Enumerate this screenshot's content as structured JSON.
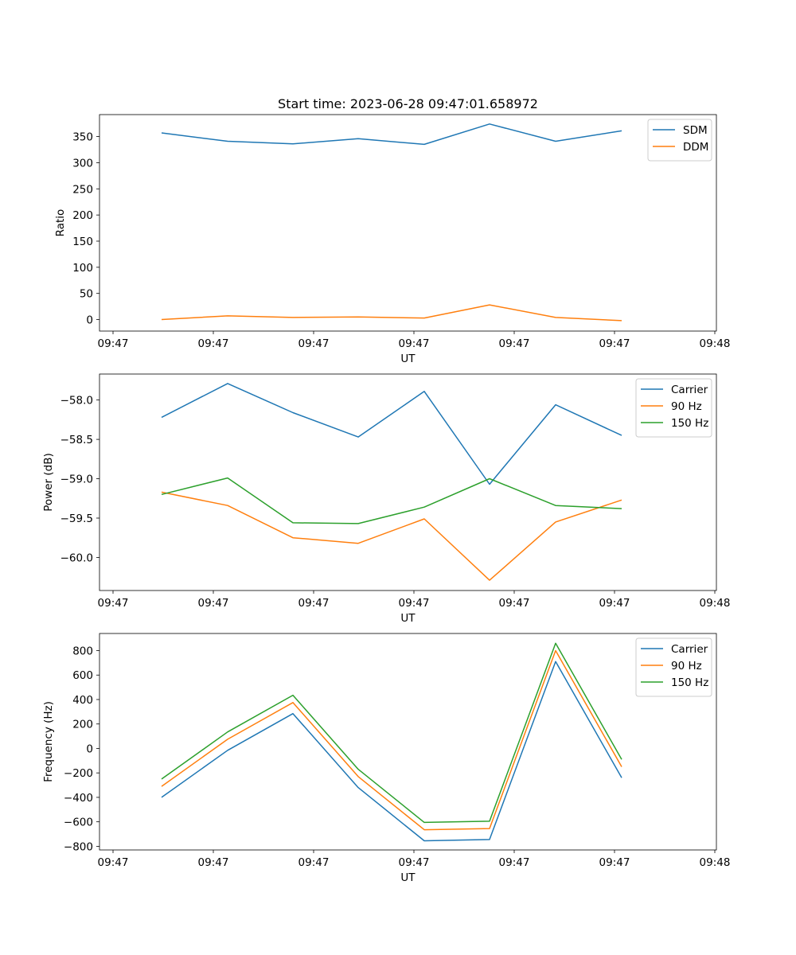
{
  "chart_data": [
    {
      "type": "line",
      "title": "Start time: 2023-06-28 09:47:01.658972",
      "xlabel": "UT",
      "ylabel": "Ratio",
      "x_tick_labels": [
        "09:47",
        "09:47",
        "09:47",
        "09:47",
        "09:47",
        "09:47",
        "09:48"
      ],
      "y_ticks": [
        0,
        50,
        100,
        150,
        200,
        250,
        300,
        350
      ],
      "ylim": [
        -22,
        392
      ],
      "grid": false,
      "legend": "top-right",
      "series": [
        {
          "name": "SDM",
          "color": "#1f77b4",
          "values": [
            357,
            341,
            336,
            346,
            335,
            374,
            341,
            361
          ]
        },
        {
          "name": "DDM",
          "color": "#ff7f0e",
          "values": [
            0,
            7,
            4,
            5,
            3,
            28,
            4,
            -2
          ]
        }
      ]
    },
    {
      "type": "line",
      "title": "",
      "xlabel": "UT",
      "ylabel": "Power (dB)",
      "x_tick_labels": [
        "09:47",
        "09:47",
        "09:47",
        "09:47",
        "09:47",
        "09:47",
        "09:48"
      ],
      "y_ticks": [
        -60.0,
        -59.5,
        -59.0,
        -58.5,
        -58.0
      ],
      "y_tick_labels": [
        "−60.0",
        "−59.5",
        "−59.0",
        "−58.5",
        "−58.0"
      ],
      "ylim": [
        -60.42,
        -57.67
      ],
      "grid": false,
      "legend": "top-right",
      "series": [
        {
          "name": "Carrier",
          "color": "#1f77b4",
          "values": [
            -58.22,
            -57.79,
            -58.16,
            -58.47,
            -57.89,
            -59.07,
            -58.06,
            -58.45
          ]
        },
        {
          "name": "90 Hz",
          "color": "#ff7f0e",
          "values": [
            -59.17,
            -59.34,
            -59.75,
            -59.82,
            -59.51,
            -60.29,
            -59.55,
            -59.27
          ]
        },
        {
          "name": "150 Hz",
          "color": "#2ca02c",
          "values": [
            -59.2,
            -58.99,
            -59.56,
            -59.57,
            -59.36,
            -59.0,
            -59.34,
            -59.38
          ]
        }
      ]
    },
    {
      "type": "line",
      "title": "",
      "xlabel": "UT",
      "ylabel": "Frequency (Hz)",
      "x_tick_labels": [
        "09:47",
        "09:47",
        "09:47",
        "09:47",
        "09:47",
        "09:47",
        "09:48"
      ],
      "y_ticks": [
        -800,
        -600,
        -400,
        -200,
        0,
        200,
        400,
        600,
        800
      ],
      "y_tick_labels": [
        "−800",
        "−600",
        "−400",
        "−200",
        "0",
        "200",
        "400",
        "600",
        "800"
      ],
      "ylim": [
        -830,
        940
      ],
      "grid": false,
      "legend": "top-right",
      "series": [
        {
          "name": "Carrier",
          "color": "#1f77b4",
          "values": [
            -400,
            -15,
            285,
            -320,
            -755,
            -745,
            710,
            -240
          ]
        },
        {
          "name": "90 Hz",
          "color": "#ff7f0e",
          "values": [
            -310,
            75,
            375,
            -230,
            -665,
            -655,
            800,
            -150
          ]
        },
        {
          "name": "150 Hz",
          "color": "#2ca02c",
          "values": [
            -250,
            135,
            435,
            -170,
            -605,
            -595,
            860,
            -90
          ]
        }
      ]
    }
  ]
}
